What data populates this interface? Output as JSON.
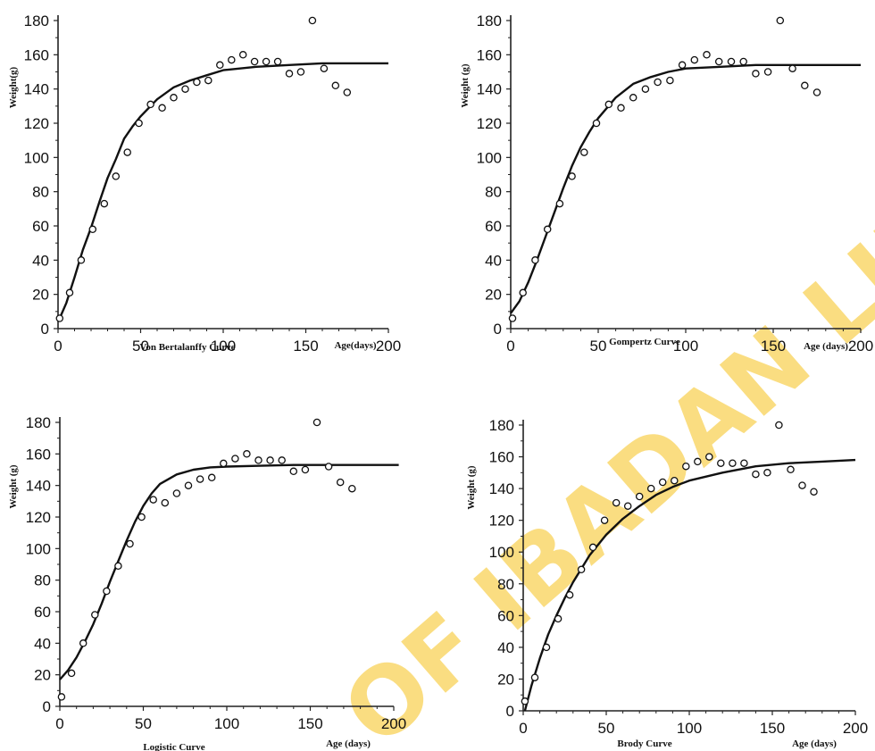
{
  "watermark": {
    "text": "OF IBADAN LIBRA",
    "color": "#f6c21b"
  },
  "colors": {
    "curve": "#111111",
    "points": "#111111",
    "axes": "#222222"
  },
  "observed": {
    "x": [
      1,
      7,
      14,
      21,
      28,
      35,
      42,
      49,
      56,
      63,
      70,
      77,
      84,
      91,
      98,
      105,
      112,
      119,
      126,
      133,
      140,
      147,
      154,
      161,
      168,
      175
    ],
    "y": [
      6,
      21,
      40,
      58,
      73,
      89,
      103,
      120,
      131,
      129,
      135,
      140,
      144,
      145,
      154,
      157,
      160,
      156,
      156,
      156,
      149,
      150,
      180,
      152,
      142,
      138
    ]
  },
  "chart_data": [
    {
      "type": "scatter",
      "title": "",
      "caption": "Von Bertalanffy Curve",
      "xlabel": "Age(days)",
      "ylabel": "Weight(g)",
      "xlim": [
        0,
        200
      ],
      "ylim": [
        0,
        180
      ],
      "xticks": [
        0,
        50,
        100,
        150,
        200
      ],
      "yticks": [
        0,
        20,
        40,
        60,
        80,
        100,
        120,
        140,
        160,
        180
      ],
      "grid": false,
      "curve": {
        "x": [
          1,
          5,
          10,
          15,
          20,
          25,
          30,
          35,
          40,
          45,
          50,
          60,
          70,
          80,
          90,
          100,
          120,
          140,
          160,
          180,
          200
        ],
        "y": [
          6,
          15,
          30,
          46,
          59,
          74,
          88,
          99,
          111,
          118,
          124,
          134,
          141,
          145,
          148,
          151,
          153,
          154,
          155,
          155,
          155
        ]
      }
    },
    {
      "type": "scatter",
      "title": "",
      "caption": "Gompertz Curve",
      "xlabel": "Age (days)",
      "ylabel": "Weight (g)",
      "xlim": [
        0,
        200
      ],
      "ylim": [
        0,
        180
      ],
      "xticks": [
        0,
        50,
        100,
        150,
        200
      ],
      "yticks": [
        0,
        20,
        40,
        60,
        80,
        100,
        120,
        140,
        160,
        180
      ],
      "grid": false,
      "curve": {
        "x": [
          0,
          5,
          10,
          15,
          20,
          25,
          30,
          35,
          40,
          45,
          50,
          60,
          70,
          80,
          90,
          100,
          120,
          140,
          160,
          180,
          200
        ],
        "y": [
          9,
          16,
          27,
          40,
          54,
          68,
          82,
          95,
          106,
          115,
          123,
          135,
          143,
          147,
          150,
          152,
          153,
          154,
          154,
          154,
          154
        ]
      }
    },
    {
      "type": "scatter",
      "title": "",
      "caption": "Logistic Curve",
      "xlabel": "Age (days)",
      "ylabel": "Weight (g)",
      "xlim": [
        0,
        200
      ],
      "ylim": [
        0,
        180
      ],
      "xticks": [
        0,
        50,
        100,
        150,
        200
      ],
      "yticks": [
        0,
        20,
        40,
        60,
        80,
        100,
        120,
        140,
        160,
        180
      ],
      "grid": false,
      "curve": {
        "x": [
          0,
          5,
          10,
          15,
          20,
          25,
          30,
          35,
          40,
          45,
          50,
          55,
          60,
          70,
          80,
          90,
          100,
          120,
          140,
          160,
          180,
          203
        ],
        "y": [
          17,
          23,
          31,
          41,
          52,
          65,
          79,
          92,
          105,
          117,
          127,
          135,
          141,
          147,
          150,
          151.5,
          152,
          152.5,
          153,
          153,
          153,
          153
        ]
      }
    },
    {
      "type": "scatter",
      "title": "",
      "caption": "Brody Curve",
      "xlabel": "Age (days)",
      "ylabel": "Weight (g)",
      "xlim": [
        0,
        200
      ],
      "ylim": [
        0,
        180
      ],
      "xticks": [
        0,
        50,
        100,
        150,
        200
      ],
      "yticks": [
        0,
        20,
        40,
        60,
        80,
        100,
        120,
        140,
        160,
        180
      ],
      "grid": false,
      "curve": {
        "x": [
          1,
          5,
          10,
          15,
          20,
          25,
          30,
          40,
          50,
          60,
          70,
          80,
          90,
          100,
          120,
          140,
          160,
          180,
          200
        ],
        "y": [
          0,
          16,
          33,
          48,
          60,
          71,
          81,
          98,
          111,
          121,
          129,
          136,
          141,
          145,
          150,
          154,
          156,
          157,
          158
        ]
      }
    }
  ]
}
